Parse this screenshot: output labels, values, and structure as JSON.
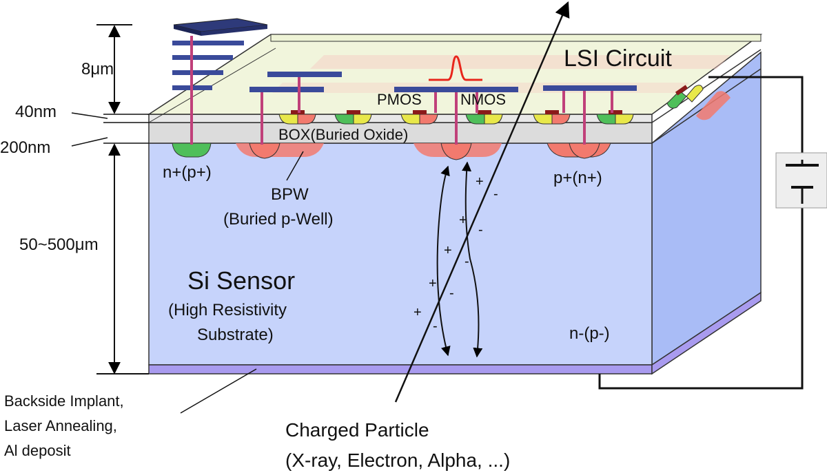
{
  "diagram": {
    "title_circuit": "LSI Circuit",
    "dimensions": {
      "top": "8μm",
      "thin1": "40nm",
      "thin2": "200nm",
      "sensor": "50~500μm"
    },
    "labels": {
      "box": "BOX(Buried Oxide)",
      "pmos": "PMOS",
      "nmos": "NMOS",
      "n_plus": "n+(p+)",
      "p_plus": "p+(n+)",
      "bpw_1": "BPW",
      "bpw_2": "(Buried p-Well)",
      "sensor_1": "Si Sensor",
      "sensor_2": "(High Resistivity",
      "sensor_3": "Substrate)",
      "n_minus": "n-(p-)",
      "backside_1": "Backside Implant,",
      "backside_2": "Laser Annealing,",
      "backside_3": "Al deposit",
      "particle_1": "Charged Particle",
      "particle_2": "(X-ray, Electron, Alpha, ...)"
    },
    "charges": {
      "plus": "+",
      "minus": "-"
    },
    "colors": {
      "substrate_front": "#c6d3fb",
      "substrate_side": "#a9bcf6",
      "box_layer": "#dcdcdc",
      "lsi_layer": "#eef3d6",
      "metal": "#3a4a9a",
      "via": "#c0407a",
      "implant_red": "#f27a6e",
      "implant_green": "#4fbf5a",
      "implant_yellow": "#e8e84a",
      "backside": "#a99bef",
      "signal": "#e8261c"
    }
  }
}
